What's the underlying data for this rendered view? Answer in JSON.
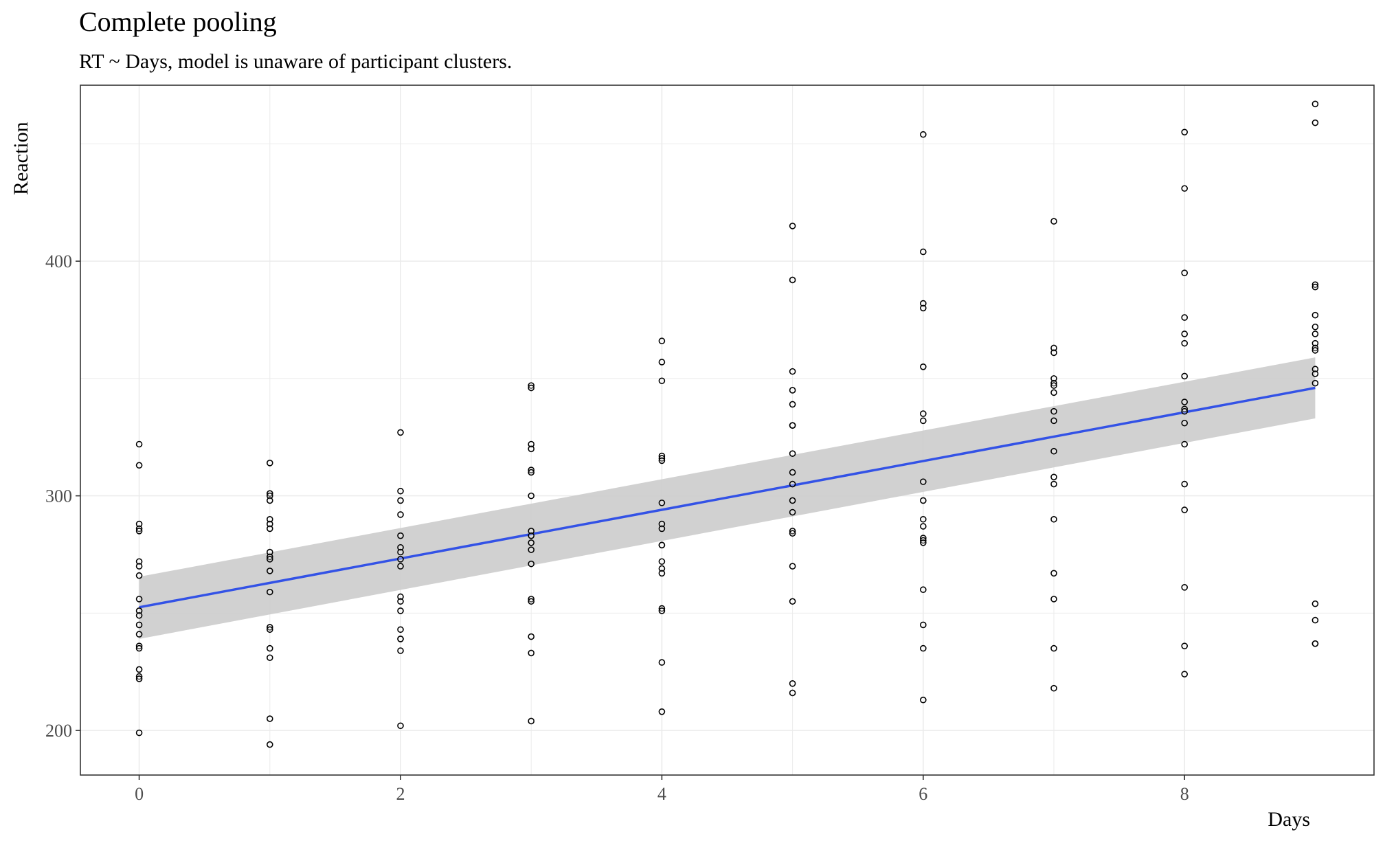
{
  "chart_data": {
    "type": "scatter",
    "title": "Complete pooling",
    "subtitle": "RT ~ Days, model is unaware of participant clusters.",
    "xlabel": "Days",
    "ylabel": "Reaction",
    "xlim": [
      -0.45,
      9.45
    ],
    "ylim": [
      181,
      475
    ],
    "x_ticks": [
      0,
      2,
      4,
      6,
      8
    ],
    "y_ticks": [
      200,
      300,
      400
    ],
    "grid": true,
    "legend": "none",
    "colors": {
      "point_stroke": "#000000",
      "point_fill": "#ffffff",
      "fit_line": "#3352e6",
      "ribbon": "#cccccc",
      "grid": "#ebebeb",
      "panel_border": "#333333"
    },
    "points": [
      {
        "x": 0,
        "y": [
          322,
          313,
          288,
          286,
          285,
          272,
          270,
          266,
          256,
          251,
          249,
          245,
          241,
          236,
          235,
          226,
          223,
          222,
          199
        ]
      },
      {
        "x": 1,
        "y": [
          314,
          301,
          300,
          298,
          290,
          288,
          286,
          276,
          274,
          273,
          268,
          259,
          244,
          243,
          235,
          231,
          205,
          194
        ]
      },
      {
        "x": 2,
        "y": [
          327,
          302,
          298,
          292,
          283,
          278,
          276,
          273,
          270,
          257,
          255,
          251,
          243,
          239,
          239,
          234,
          202
        ]
      },
      {
        "x": 3,
        "y": [
          347,
          346,
          322,
          320,
          311,
          310,
          300,
          285,
          283,
          280,
          277,
          271,
          256,
          255,
          240,
          233,
          204
        ]
      },
      {
        "x": 4,
        "y": [
          366,
          357,
          349,
          317,
          316,
          315,
          297,
          288,
          286,
          279,
          279,
          272,
          269,
          267,
          252,
          251,
          229,
          208
        ]
      },
      {
        "x": 5,
        "y": [
          415,
          392,
          353,
          345,
          339,
          330,
          330,
          318,
          310,
          305,
          298,
          293,
          285,
          284,
          270,
          255,
          220,
          216
        ]
      },
      {
        "x": 6,
        "y": [
          454,
          404,
          382,
          380,
          355,
          335,
          332,
          306,
          298,
          290,
          287,
          282,
          281,
          280,
          260,
          245,
          235,
          213
        ]
      },
      {
        "x": 7,
        "y": [
          417,
          363,
          361,
          350,
          348,
          347,
          344,
          336,
          332,
          319,
          308,
          305,
          290,
          267,
          256,
          235,
          218
        ]
      },
      {
        "x": 8,
        "y": [
          455,
          431,
          395,
          376,
          369,
          365,
          351,
          340,
          337,
          336,
          331,
          322,
          305,
          294,
          261,
          236,
          224
        ]
      },
      {
        "x": 9,
        "y": [
          467,
          459,
          390,
          389,
          377,
          372,
          369,
          365,
          363,
          362,
          354,
          352,
          348,
          254,
          247,
          237,
          237
        ]
      }
    ],
    "fit": {
      "x": [
        0,
        9
      ],
      "y": [
        252.5,
        346.0
      ],
      "ci_lower": [
        239.0,
        333.0
      ],
      "ci_upper": [
        265.5,
        359.0
      ]
    }
  }
}
